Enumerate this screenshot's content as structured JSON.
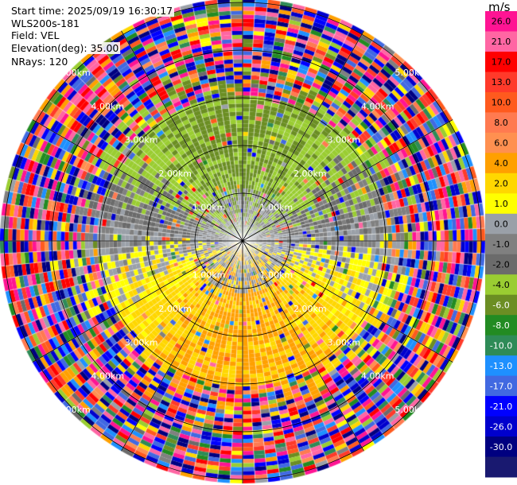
{
  "info": {
    "start_time": "Start time: 2025/09/19 16:30:17",
    "instrument": "WLS200s-181",
    "field": "Field: VEL",
    "elevation": "Elevation(deg): 35.00",
    "nrays": "NRays: 120"
  },
  "chart_data": {
    "type": "heatmap",
    "subtype": "polar-ppi",
    "rays": 120,
    "range_rings_km": [
      1,
      2,
      3,
      4,
      5
    ],
    "ring_labels": [
      "1.00km",
      "2.00km",
      "3.00km",
      "4.00km",
      "5.00km"
    ],
    "spokes_deg": [
      0,
      30,
      60,
      90,
      120,
      150,
      180,
      210,
      240,
      270,
      300,
      330
    ],
    "colorbar": {
      "unit": "m/s",
      "ticks": [
        "26.0",
        "21.0",
        "17.0",
        "13.0",
        "10.0",
        "8.0",
        "6.0",
        "4.0",
        "2.0",
        "1.0",
        "0.0",
        "-1.0",
        "-2.0",
        "-4.0",
        "-6.0",
        "-8.0",
        "-10.0",
        "-13.0",
        "-17.0",
        "-21.0",
        "-26.0",
        "-30.0"
      ],
      "colors": [
        "#ff1493",
        "#ff66a3",
        "#ff0000",
        "#ff3a2a",
        "#ff5a1e",
        "#ff7a50",
        "#ff9050",
        "#ffa000",
        "#ffd700",
        "#ffff00",
        "#9aa0a8",
        "#808080",
        "#6b6b6b",
        "#9acd32",
        "#6b8e23",
        "#228b22",
        "#2e8b57",
        "#1e90ff",
        "#4169e1",
        "#0000ff",
        "#0000cd",
        "#000080",
        "#191970"
      ]
    }
  }
}
